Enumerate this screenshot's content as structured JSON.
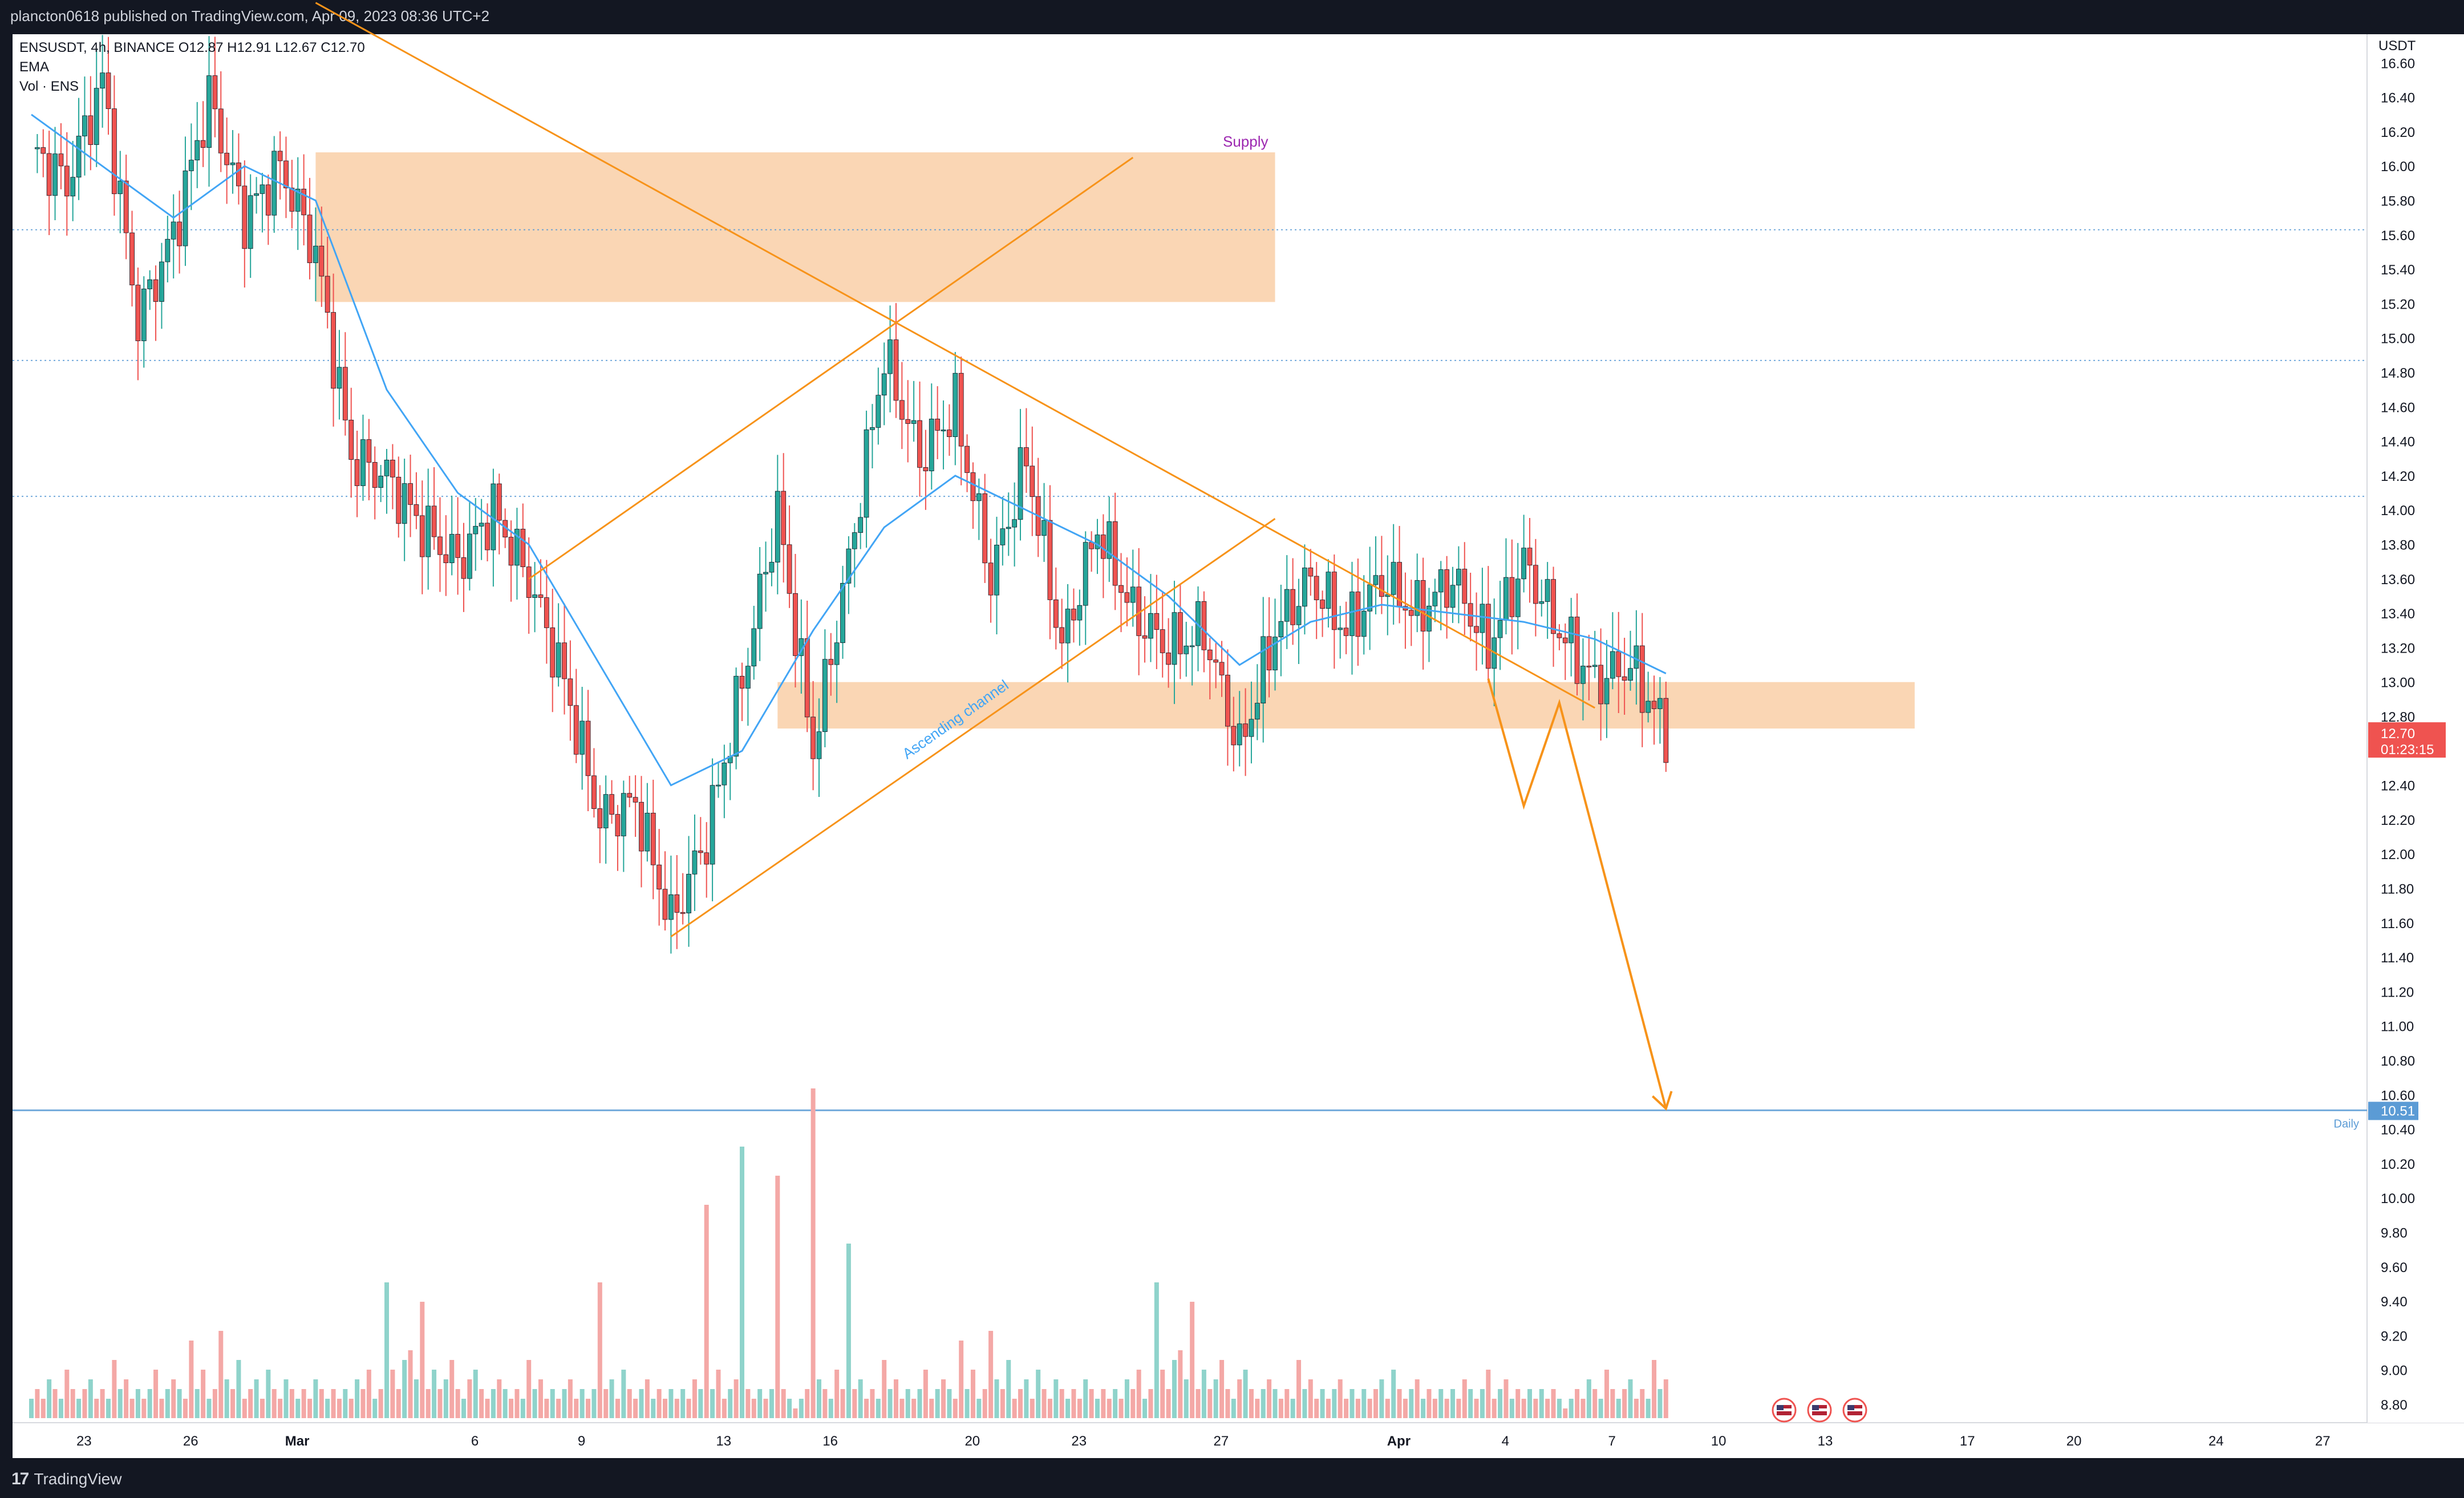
{
  "header": {
    "published_by": "plancton0618 published on TradingView.com, Apr 09, 2023 08:36 UTC+2"
  },
  "legend": {
    "symbol_line": "ENSUSDT, 4h, BINANCE  O12.87  H12.91  L12.67  C12.70",
    "ema_label": "EMA",
    "vol_label": "Vol · ENS"
  },
  "footer": {
    "brand": "TradingView"
  },
  "colors": {
    "up": "#26a69a",
    "down": "#ef5350",
    "up_volume": "#8fd3cb",
    "down_volume": "#f4a8a6",
    "ema": "#42a5f5",
    "zone_fill": "#f8c89b",
    "trendline": "#f7931a",
    "daily_line": "#5b9bd5",
    "frame": "#131722",
    "annotation_supply": "#9c27b0",
    "annotation_channel": "#42a5f5"
  },
  "chart_data": {
    "type": "candlestick",
    "symbol": "ENSUSDT",
    "exchange": "BINANCE",
    "interval": "4h",
    "last_bar": {
      "open": 12.87,
      "high": 12.91,
      "low": 12.67,
      "close": 12.7
    },
    "y_axis": {
      "unit": "USDT",
      "range": [
        8.7,
        16.7
      ],
      "ticks": [
        "16.60",
        "16.40",
        "16.20",
        "16.00",
        "15.80",
        "15.60",
        "15.40",
        "15.20",
        "15.00",
        "14.80",
        "14.60",
        "14.40",
        "14.20",
        "14.00",
        "13.80",
        "13.60",
        "13.40",
        "13.20",
        "13.00",
        "12.80",
        "12.60",
        "12.40",
        "12.20",
        "12.00",
        "11.80",
        "11.60",
        "11.40",
        "11.20",
        "11.00",
        "10.80",
        "10.60",
        "10.40",
        "10.20",
        "10.00",
        "9.80",
        "9.60",
        "9.40",
        "9.20",
        "9.00",
        "8.80"
      ]
    },
    "x_axis": {
      "ticks": [
        {
          "label": "23",
          "date": "2023-02-23"
        },
        {
          "label": "26",
          "date": "2023-02-26"
        },
        {
          "label": "Mar",
          "date": "2023-03-01",
          "bold": true
        },
        {
          "label": "6",
          "date": "2023-03-06"
        },
        {
          "label": "9",
          "date": "2023-03-09"
        },
        {
          "label": "13",
          "date": "2023-03-13"
        },
        {
          "label": "16",
          "date": "2023-03-16"
        },
        {
          "label": "20",
          "date": "2023-03-20"
        },
        {
          "label": "23",
          "date": "2023-03-23"
        },
        {
          "label": "27",
          "date": "2023-03-27"
        },
        {
          "label": "Apr",
          "date": "2023-04-01",
          "bold": true
        },
        {
          "label": "4",
          "date": "2023-04-04"
        },
        {
          "label": "7",
          "date": "2023-04-07"
        },
        {
          "label": "10",
          "date": "2023-04-10"
        },
        {
          "label": "13",
          "date": "2023-04-13"
        },
        {
          "label": "17",
          "date": "2023-04-17"
        },
        {
          "label": "20",
          "date": "2023-04-20"
        },
        {
          "label": "24",
          "date": "2023-04-24"
        },
        {
          "label": "27",
          "date": "2023-04-27"
        }
      ]
    },
    "price_path": [
      [
        "2023-02-22",
        16.1
      ],
      [
        "2023-02-23",
        15.9
      ],
      [
        "2023-02-24",
        16.5
      ],
      [
        "2023-02-25",
        15.1
      ],
      [
        "2023-02-26",
        15.6
      ],
      [
        "2023-02-27",
        16.4
      ],
      [
        "2023-02-28",
        15.7
      ],
      [
        "2023-03-01",
        16.0
      ],
      [
        "2023-03-02",
        15.5
      ],
      [
        "2023-03-03",
        14.3
      ],
      [
        "2023-03-04",
        14.2
      ],
      [
        "2023-03-05",
        13.9
      ],
      [
        "2023-03-06",
        13.7
      ],
      [
        "2023-03-07",
        14.0
      ],
      [
        "2023-03-08",
        13.6
      ],
      [
        "2023-03-09",
        13.0
      ],
      [
        "2023-03-10",
        12.2
      ],
      [
        "2023-03-11",
        12.3
      ],
      [
        "2023-03-12",
        11.6
      ],
      [
        "2023-03-13",
        12.1
      ],
      [
        "2023-03-14",
        13.0
      ],
      [
        "2023-03-15",
        14.0
      ],
      [
        "2023-03-16",
        12.6
      ],
      [
        "2023-03-17",
        13.7
      ],
      [
        "2023-03-18",
        14.9
      ],
      [
        "2023-03-19",
        14.3
      ],
      [
        "2023-03-20",
        14.6
      ],
      [
        "2023-03-21",
        13.6
      ],
      [
        "2023-03-22",
        14.3
      ],
      [
        "2023-03-23",
        13.2
      ],
      [
        "2023-03-24",
        13.9
      ],
      [
        "2023-03-25",
        13.4
      ],
      [
        "2023-03-26",
        13.2
      ],
      [
        "2023-03-27",
        13.3
      ],
      [
        "2023-03-28",
        12.6
      ],
      [
        "2023-03-29",
        13.3
      ],
      [
        "2023-03-30",
        13.6
      ],
      [
        "2023-03-31",
        13.3
      ],
      [
        "2023-04-01",
        13.6
      ],
      [
        "2023-04-02",
        13.4
      ],
      [
        "2023-04-03",
        13.6
      ],
      [
        "2023-04-04",
        13.2
      ],
      [
        "2023-04-05",
        13.7
      ],
      [
        "2023-04-06",
        13.3
      ],
      [
        "2023-04-07",
        13.0
      ],
      [
        "2023-04-08",
        13.1
      ],
      [
        "2023-04-09",
        12.7
      ]
    ],
    "ema_path": [
      [
        "2023-02-22",
        16.3
      ],
      [
        "2023-02-24",
        16.0
      ],
      [
        "2023-02-26",
        15.7
      ],
      [
        "2023-02-28",
        16.0
      ],
      [
        "2023-03-02",
        15.8
      ],
      [
        "2023-03-04",
        14.7
      ],
      [
        "2023-03-06",
        14.1
      ],
      [
        "2023-03-08",
        13.8
      ],
      [
        "2023-03-10",
        13.1
      ],
      [
        "2023-03-12",
        12.4
      ],
      [
        "2023-03-14",
        12.6
      ],
      [
        "2023-03-16",
        13.3
      ],
      [
        "2023-03-18",
        13.9
      ],
      [
        "2023-03-20",
        14.2
      ],
      [
        "2023-03-22",
        14.0
      ],
      [
        "2023-03-24",
        13.8
      ],
      [
        "2023-03-26",
        13.5
      ],
      [
        "2023-03-28",
        13.1
      ],
      [
        "2023-03-30",
        13.35
      ],
      [
        "2023-04-01",
        13.45
      ],
      [
        "2023-04-03",
        13.4
      ],
      [
        "2023-04-05",
        13.35
      ],
      [
        "2023-04-07",
        13.25
      ],
      [
        "2023-04-09",
        13.05
      ]
    ],
    "volume_pattern": [
      2,
      3,
      2,
      4,
      3,
      2,
      5,
      3,
      2,
      3,
      4,
      2,
      3,
      2,
      6,
      3,
      4,
      2,
      3,
      2,
      3,
      5,
      2,
      3,
      4,
      3,
      2,
      8,
      3,
      5,
      2,
      3,
      9,
      4,
      3,
      6,
      2,
      3,
      4,
      2,
      5,
      3,
      2,
      4,
      3,
      2,
      3,
      2,
      4,
      3,
      2,
      3,
      2,
      3,
      2,
      4,
      3,
      5,
      2,
      3,
      14,
      5,
      3,
      6,
      7,
      4,
      12,
      3,
      5,
      3,
      4,
      6,
      3,
      2,
      4,
      5,
      3,
      2,
      3,
      4,
      3,
      2,
      3,
      2,
      6,
      3,
      4,
      2,
      3,
      2,
      3,
      4,
      2,
      3,
      2,
      3,
      2,
      3,
      4,
      2,
      5,
      3,
      2,
      3,
      4,
      2,
      3,
      2,
      3,
      2,
      3,
      2,
      4,
      3,
      2,
      3,
      5,
      2,
      3,
      4,
      2,
      3,
      2,
      3,
      2,
      3,
      2,
      3,
      2,
      1
    ],
    "volume_spikes": [
      [
        "2023-03-13",
        22
      ],
      [
        "2023-03-14",
        28
      ],
      [
        "2023-03-15",
        25
      ],
      [
        "2023-03-16",
        34
      ],
      [
        "2023-03-17",
        18
      ],
      [
        "2023-03-10",
        14
      ]
    ],
    "zones": [
      {
        "label": "Supply",
        "from": "2023-03-02",
        "to": "2023-03-29",
        "top": 16.08,
        "bottom": 15.21
      },
      {
        "label": "",
        "from": "2023-03-15",
        "to": "2023-04-16",
        "top": 13.0,
        "bottom": 12.73
      }
    ],
    "trendlines": [
      {
        "from": [
          "2023-03-02",
          16.95
        ],
        "to": [
          "2023-04-07",
          12.85
        ]
      },
      {
        "from": [
          "2023-03-08",
          13.6
        ],
        "to": [
          "2023-03-25",
          16.05
        ]
      },
      {
        "from": [
          "2023-03-12",
          11.52
        ],
        "to": [
          "2023-03-29",
          13.95
        ]
      }
    ],
    "projection": [
      [
        "2023-04-04",
        13.02
      ],
      [
        "2023-04-05",
        12.28
      ],
      [
        "2023-04-06",
        12.88
      ],
      [
        "2023-04-09",
        10.52
      ]
    ],
    "horizontal_lines": [
      {
        "price": 15.63,
        "style": "dotted"
      },
      {
        "price": 14.87,
        "style": "dotted"
      },
      {
        "price": 14.08,
        "style": "dotted"
      },
      {
        "price": 10.51,
        "style": "solid",
        "label": "Daily"
      }
    ],
    "annotations": {
      "supply": "Supply",
      "channel": "Ascending channel",
      "daily": "Daily"
    },
    "price_labels": {
      "current_price": "12.70",
      "countdown": "01:23:15",
      "daily_level": "10.51"
    },
    "event_icons": [
      "us-flag-icon",
      "us-flag-icon",
      "us-flag-icon"
    ]
  }
}
